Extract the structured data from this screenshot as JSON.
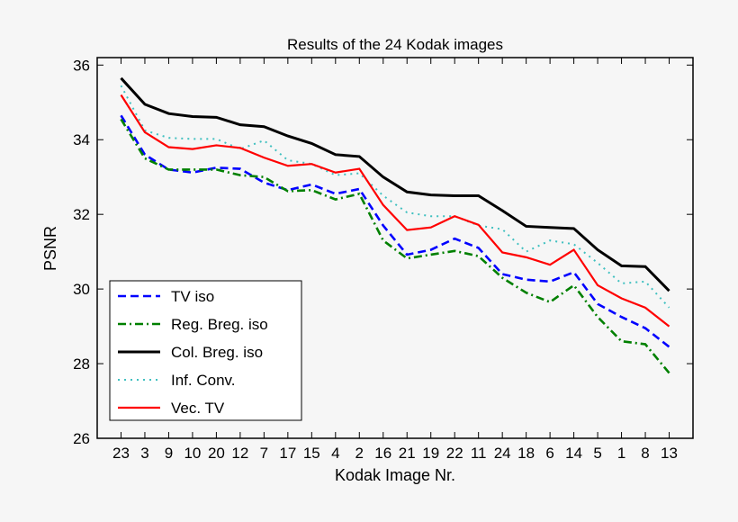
{
  "chart_data": {
    "type": "line",
    "title": "Results of the 24 Kodak images",
    "xlabel": "Kodak Image Nr.",
    "ylabel": "PSNR",
    "categories": [
      "23",
      "3",
      "9",
      "10",
      "20",
      "12",
      "7",
      "17",
      "15",
      "4",
      "2",
      "16",
      "21",
      "19",
      "22",
      "11",
      "24",
      "18",
      "6",
      "14",
      "5",
      "1",
      "8",
      "13"
    ],
    "ylim": [
      26,
      36.2
    ],
    "xlim": [
      0,
      25
    ],
    "yticks": [
      26,
      28,
      30,
      32,
      34,
      36
    ],
    "grid": false,
    "legend_placement": "bottom-left",
    "series": [
      {
        "name": "TV iso",
        "color": "#0000ff",
        "style": "dashed",
        "values": [
          34.65,
          33.6,
          33.2,
          33.12,
          33.25,
          33.22,
          32.85,
          32.65,
          32.8,
          32.55,
          32.68,
          31.7,
          30.92,
          31.05,
          31.35,
          31.1,
          30.4,
          30.25,
          30.2,
          30.45,
          29.6,
          29.25,
          28.95,
          28.45
        ]
      },
      {
        "name": "Reg. Breg. iso",
        "color": "#008000",
        "style": "dashdot",
        "values": [
          34.55,
          33.5,
          33.2,
          33.2,
          33.2,
          33.05,
          33.0,
          32.62,
          32.65,
          32.4,
          32.55,
          31.3,
          30.82,
          30.92,
          31.02,
          30.88,
          30.3,
          29.9,
          29.65,
          30.1,
          29.25,
          28.6,
          28.52,
          27.75
        ]
      },
      {
        "name": "Col. Breg. iso",
        "color": "#000000",
        "style": "solid",
        "values": [
          35.65,
          34.95,
          34.7,
          34.62,
          34.6,
          34.4,
          34.35,
          34.1,
          33.9,
          33.6,
          33.55,
          33.0,
          32.6,
          32.52,
          32.5,
          32.5,
          32.1,
          31.68,
          31.65,
          31.62,
          31.05,
          30.62,
          30.6,
          29.95
        ]
      },
      {
        "name": "Inf. Conv.",
        "color": "#40c0c0",
        "style": "dotted",
        "values": [
          35.45,
          34.25,
          34.05,
          34.02,
          34.02,
          33.75,
          33.98,
          33.45,
          33.35,
          33.05,
          33.1,
          32.5,
          32.05,
          31.95,
          31.95,
          31.7,
          31.6,
          31.0,
          31.3,
          31.2,
          30.7,
          30.15,
          30.2,
          29.5
        ]
      },
      {
        "name": "Vec. TV",
        "color": "#ff0000",
        "style": "solid",
        "values": [
          35.2,
          34.2,
          33.8,
          33.75,
          33.85,
          33.78,
          33.52,
          33.3,
          33.35,
          33.12,
          33.22,
          32.25,
          31.58,
          31.65,
          31.95,
          31.72,
          30.98,
          30.85,
          30.65,
          31.05,
          30.1,
          29.75,
          29.5,
          29.0
        ]
      }
    ]
  }
}
